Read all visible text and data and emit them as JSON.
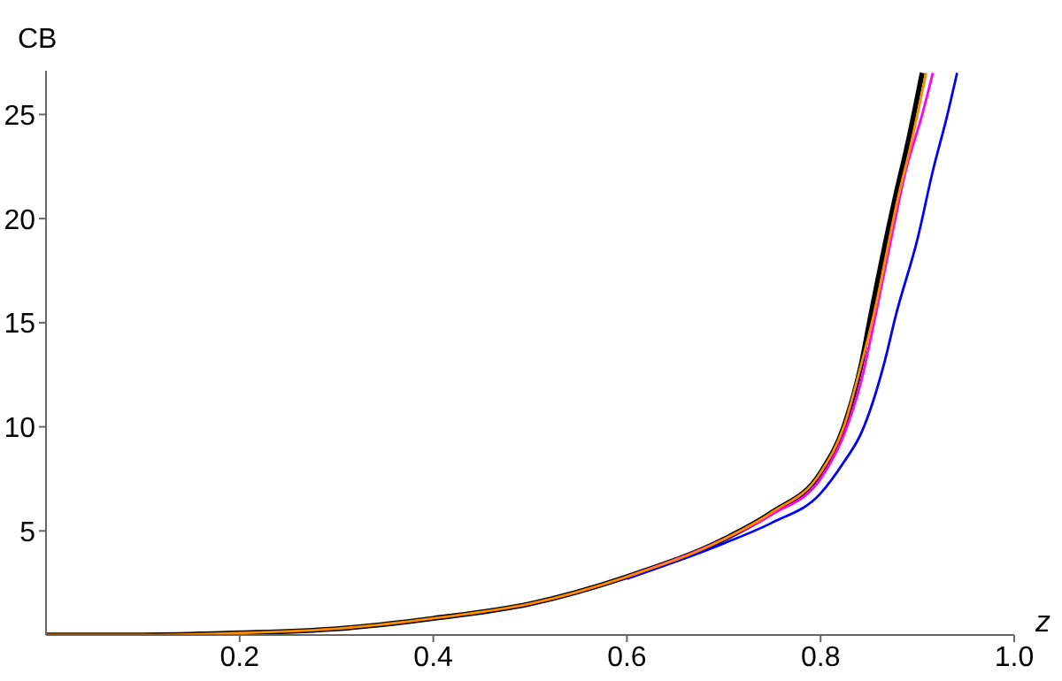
{
  "chart_data": {
    "type": "line",
    "xlabel": "z",
    "ylabel": "CB",
    "xlim": [
      0,
      1
    ],
    "ylim": [
      0,
      27.1
    ],
    "xticks": [
      0.2,
      0.4,
      0.6,
      0.8,
      {
        "value": 1,
        "label": "1.0"
      }
    ],
    "yticks": [
      5,
      10,
      15,
      20,
      25
    ],
    "grid": false,
    "legend": false,
    "marker": "none",
    "line_style": "solid",
    "series": [
      {
        "color": "#000000",
        "x": [
          0,
          0.1,
          0.2,
          0.3,
          0.4,
          0.5,
          0.6,
          0.7,
          0.75,
          0.8,
          0.824,
          0.842,
          0.852,
          0.877,
          0.89,
          0.905
        ],
        "values": [
          0,
          0,
          0.1,
          0.3,
          0.8,
          1.5,
          2.8,
          4.6,
          5.9,
          7.8,
          10,
          13,
          15.4,
          21,
          23.6,
          27
        ]
      },
      {
        "color": "#0000ff",
        "x": [
          0.6,
          0.7,
          0.75,
          0.8,
          0.824,
          0.842,
          0.866,
          0.878,
          0.9,
          0.916,
          0.93,
          0.941
        ],
        "values": [
          2.7,
          4.4,
          5.4,
          6.8,
          8.3,
          9.7,
          13.1,
          15.4,
          19,
          22.3,
          24.8,
          27
        ]
      },
      {
        "color": "#ff00ff",
        "x": [
          0.6,
          0.7,
          0.75,
          0.8,
          0.824,
          0.842,
          0.857,
          0.875,
          0.888,
          0.905,
          0.916
        ],
        "values": [
          2.8,
          4.6,
          5.8,
          7.5,
          9.6,
          12.2,
          15.4,
          19.5,
          22.3,
          25,
          27
        ]
      },
      {
        "color": "#ff8c00",
        "x": [
          0,
          0.1,
          0.2,
          0.3,
          0.4,
          0.5,
          0.6,
          0.7,
          0.75,
          0.8,
          0.824,
          0.842,
          0.855,
          0.88,
          0.893,
          0.909
        ],
        "values": [
          0,
          0,
          0.1,
          0.3,
          0.8,
          1.5,
          2.8,
          4.6,
          5.9,
          7.8,
          10,
          13,
          15.4,
          21,
          23.5,
          27
        ]
      }
    ]
  }
}
